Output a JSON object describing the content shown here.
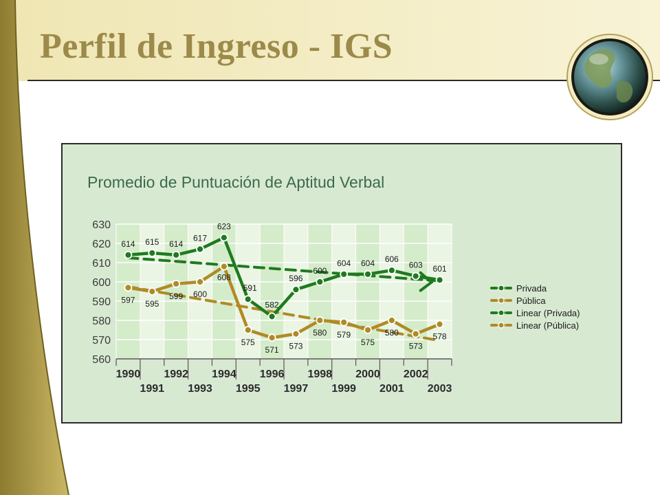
{
  "slide": {
    "title": "Perfil de Ingreso - IGS"
  },
  "colors": {
    "privada": "#1f7a1f",
    "publica": "#b08a25",
    "title_gold": "#9c8a4a",
    "chart_bg": "#d8e9d2"
  },
  "icons": {
    "logo": "globe-icon"
  },
  "chart_data": {
    "type": "line",
    "title": "Promedio de Puntuación de Aptitud Verbal",
    "xlabel": "",
    "ylabel": "",
    "x": [
      1990,
      1991,
      1992,
      1993,
      1994,
      1995,
      1996,
      1997,
      1998,
      1999,
      2000,
      2001,
      2002,
      2003
    ],
    "x_tick_labels_top": [
      "1990",
      "1992",
      "1994",
      "1996",
      "1998",
      "2000",
      "2002"
    ],
    "x_tick_labels_bottom": [
      "1991",
      "1993",
      "1995",
      "1997",
      "1999",
      "2001",
      "2003"
    ],
    "ylim": [
      560,
      630
    ],
    "yticks": [
      560,
      570,
      580,
      590,
      600,
      610,
      620,
      630
    ],
    "grid": true,
    "legend_position": "right",
    "series": [
      {
        "name": "Privada",
        "style": "line-marker",
        "values": [
          614,
          615,
          614,
          617,
          623,
          591,
          582,
          596,
          600,
          604,
          604,
          606,
          603,
          601
        ]
      },
      {
        "name": "Pública",
        "style": "line-marker",
        "values": [
          597,
          595,
          599,
          600,
          608,
          575,
          571,
          573,
          580,
          579,
          575,
          580,
          573,
          578
        ]
      },
      {
        "name": "Linear (Privada)",
        "style": "trend",
        "endpoints": [
          612.5,
          600.5
        ]
      },
      {
        "name": "Linear (Pública)",
        "style": "trend",
        "endpoints": [
          597.5,
          569.5
        ]
      }
    ]
  }
}
